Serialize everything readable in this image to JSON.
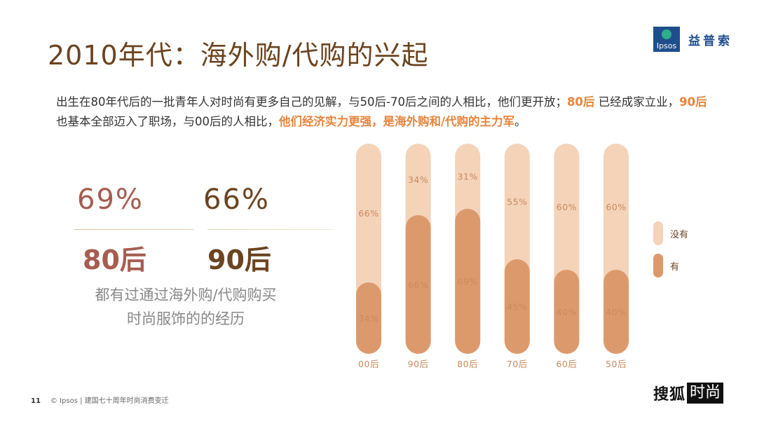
{
  "title": "2010年代：海外购/代购的兴起",
  "brand": {
    "logo_text": "Ipsos",
    "name": "益普索"
  },
  "intro": {
    "p1": "出生在80年代后的一批青年人对时尚有更多自己的见解，与50后-70后之间的人相比，他们更开放；",
    "h1": "80后",
    "p2": " 已经成家立业，",
    "h2": "90后",
    "p3": " 也基本全部迈入了职场，与00后的人相比，",
    "h3": "他们经济实力更强，是海外购和/代购的主力军",
    "p4": "。"
  },
  "stats": {
    "pct_80": "69%",
    "pct_90": "66%",
    "label_80": "80后",
    "label_90": "90后",
    "desc_line1": "都有过通过海外购/代购购买",
    "desc_line2": "时尚服饰的的经历"
  },
  "chart_data": {
    "type": "bar",
    "stacked": true,
    "categories": [
      "00后",
      "90后",
      "80后",
      "70后",
      "60后",
      "50后"
    ],
    "series": [
      {
        "name": "有",
        "values": [
          34,
          66,
          69,
          45,
          40,
          40
        ],
        "color": "#dc9a6c"
      },
      {
        "name": "没有",
        "values": [
          66,
          34,
          31,
          55,
          60,
          60
        ],
        "color": "#f4d3b9"
      }
    ],
    "ylim": [
      0,
      100
    ],
    "legend": "right"
  },
  "label_color": "#c98a5e",
  "footer": {
    "page": "11",
    "text": "© Ipsos | 建国七十周年时尚消费变迁"
  },
  "media": {
    "part1": "搜狐",
    "part2": "时尚"
  }
}
